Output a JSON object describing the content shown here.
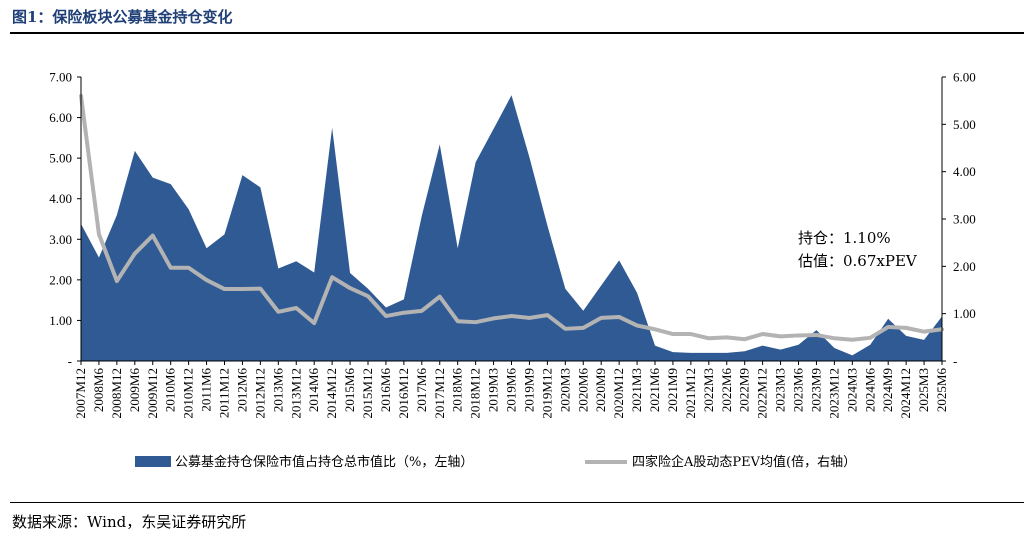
{
  "header": {
    "title": "图1：保险板块公募基金持仓变化"
  },
  "footer": {
    "source": "数据来源：Wind，东吴证券研究所"
  },
  "annotation": {
    "line1": "持仓：1.10%",
    "line2": "估值：0.67xPEV"
  },
  "colors": {
    "area": "#2f5a94",
    "line": "#b3b3b3",
    "axis": "#000000"
  },
  "chart_data": {
    "type": "area",
    "categories": [
      "2007M12",
      "2008M6",
      "2008M12",
      "2009M6",
      "2009M12",
      "2010M6",
      "2010M12",
      "2011M6",
      "2011M12",
      "2012M6",
      "2012M12",
      "2013M6",
      "2013M12",
      "2014M6",
      "2014M12",
      "2015M6",
      "2015M12",
      "2016M6",
      "2016M12",
      "2017M6",
      "2017M12",
      "2018M6",
      "2018M12",
      "2019M3",
      "2019M6",
      "2019M9",
      "2019M12",
      "2020M3",
      "2020M6",
      "2020M9",
      "2020M12",
      "2021M3",
      "2021M6",
      "2021M9",
      "2021M12",
      "2022M3",
      "2022M6",
      "2022M9",
      "2022M12",
      "2023M3",
      "2023M6",
      "2023M9",
      "2023M12",
      "2024M3",
      "2024M6",
      "2024M9",
      "2024M12",
      "2025M3",
      "2025M6"
    ],
    "x_tick_labels": [
      "2007M12",
      "2008M6",
      "2008M12",
      "2009M6",
      "2009M12",
      "2010M6",
      "2010M12",
      "2011M6",
      "2011M12",
      "2012M6",
      "2012M12",
      "2013M6",
      "2013M12",
      "2014M6",
      "2014M12",
      "2015M6",
      "2015M12",
      "2016M6",
      "2016M12",
      "2017M6",
      "2017M12",
      "2018M6",
      "2018M12",
      "2019M3",
      "2019M6",
      "2019M9",
      "2019M12",
      "2020M3",
      "2020M6",
      "2020M9",
      "2020M12",
      "2021M3",
      "2021M6",
      "2021M9",
      "2021M12",
      "2022M3",
      "2022M6",
      "2022M9",
      "2022M12",
      "2023M3",
      "2023M6",
      "2023M9",
      "2023M12",
      "2024M3",
      "2024M6",
      "2024M9",
      "2024M12",
      "2025M3",
      "2025M6"
    ],
    "series": [
      {
        "name": "公募基金持仓保险市值占持仓总市值比（%，左轴）",
        "axis": "left",
        "kind": "area",
        "values": [
          3.38,
          2.55,
          3.6,
          5.18,
          4.52,
          4.36,
          3.74,
          2.78,
          3.12,
          4.58,
          4.28,
          2.28,
          2.46,
          2.18,
          5.75,
          2.17,
          1.78,
          1.32,
          1.52,
          3.58,
          5.34,
          2.78,
          4.9,
          5.72,
          6.55,
          5.02,
          3.34,
          1.78,
          1.24,
          1.86,
          2.48,
          1.68,
          0.38,
          0.22,
          0.2,
          0.2,
          0.2,
          0.24,
          0.38,
          0.28,
          0.4,
          0.76,
          0.32,
          0.14,
          0.4,
          1.04,
          0.62,
          0.52,
          1.1
        ]
      },
      {
        "name": "四家险企A股动态PEV均值(倍，右轴）",
        "axis": "right",
        "kind": "line",
        "values": [
          5.6,
          2.68,
          1.69,
          2.27,
          2.65,
          1.97,
          1.97,
          1.71,
          1.52,
          1.52,
          1.53,
          1.04,
          1.12,
          0.8,
          1.77,
          1.54,
          1.37,
          0.95,
          1.02,
          1.06,
          1.36,
          0.84,
          0.82,
          0.9,
          0.95,
          0.91,
          0.97,
          0.68,
          0.7,
          0.91,
          0.93,
          0.75,
          0.67,
          0.57,
          0.57,
          0.48,
          0.5,
          0.46,
          0.57,
          0.52,
          0.54,
          0.55,
          0.48,
          0.45,
          0.49,
          0.72,
          0.7,
          0.62,
          0.67
        ]
      }
    ],
    "left_axis": {
      "min": 0,
      "max": 7,
      "step": 1,
      "tick_labels": [
        "-",
        "1.00",
        "2.00",
        "3.00",
        "4.00",
        "5.00",
        "6.00",
        "7.00"
      ]
    },
    "right_axis": {
      "min": 0,
      "max": 6,
      "step": 1,
      "tick_labels": [
        "-",
        "1.00",
        "2.00",
        "3.00",
        "4.00",
        "5.00",
        "6.00"
      ]
    },
    "legend_position": "bottom",
    "grid": false
  }
}
